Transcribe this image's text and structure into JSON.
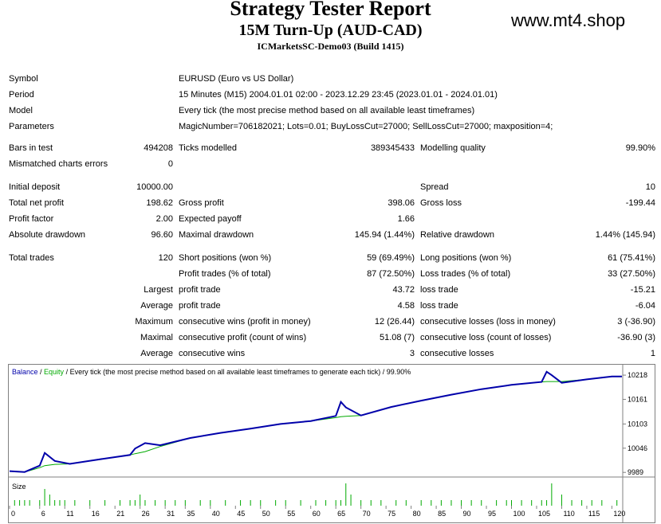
{
  "report": {
    "title": "Strategy Tester Report",
    "subtitle": "15M Turn-Up (AUD-CAD)",
    "server": "ICMarketsSC-Demo03 (Build 1415)",
    "website": "www.mt4.shop"
  },
  "settings": {
    "symbol_label": "Symbol",
    "symbol_value": "EURUSD (Euro vs US Dollar)",
    "period_label": "Period",
    "period_value": "15 Minutes (M15) 2004.01.01 02:00 - 2023.12.29 23:45 (2023.01.01 - 2024.01.01)",
    "model_label": "Model",
    "model_value": "Every tick (the most precise method based on all available least timeframes)",
    "params_label": "Parameters",
    "params_value": "MagicNumber=706182021; Lots=0.01; BuyLossCut=27000; SellLossCut=27000; maxposition=4;"
  },
  "stats": {
    "bars_label": "Bars in test",
    "bars_value": "494208",
    "ticks_label": "Ticks modelled",
    "ticks_value": "389345433",
    "quality_label": "Modelling quality",
    "quality_value": "99.90%",
    "mismatch_label": "Mismatched charts errors",
    "mismatch_value": "0",
    "deposit_label": "Initial deposit",
    "deposit_value": "10000.00",
    "spread_label": "Spread",
    "spread_value": "10",
    "netprofit_label": "Total net profit",
    "netprofit_value": "198.62",
    "grossprofit_label": "Gross profit",
    "grossprofit_value": "398.06",
    "grossloss_label": "Gross loss",
    "grossloss_value": "-199.44",
    "pf_label": "Profit factor",
    "pf_value": "2.00",
    "ep_label": "Expected payoff",
    "ep_value": "1.66",
    "absdd_label": "Absolute drawdown",
    "absdd_value": "96.60",
    "maxdd_label": "Maximal drawdown",
    "maxdd_value": "145.94 (1.44%)",
    "reldd_label": "Relative drawdown",
    "reldd_value": "1.44% (145.94)",
    "trades_label": "Total trades",
    "trades_value": "120",
    "short_label": "Short positions (won %)",
    "short_value": "59 (69.49%)",
    "long_label": "Long positions (won %)",
    "long_value": "61 (75.41%)",
    "ptrades_label": "Profit trades (% of total)",
    "ptrades_value": "87 (72.50%)",
    "ltrades_label": "Loss trades (% of total)",
    "ltrades_value": "33 (27.50%)",
    "largest_label": "Largest",
    "largest_pt_label": "profit trade",
    "largest_pt_value": "43.72",
    "largest_lt_label": "loss trade",
    "largest_lt_value": "-15.21",
    "average_label": "Average",
    "average_pt_label": "profit trade",
    "average_pt_value": "4.58",
    "average_lt_label": "loss trade",
    "average_lt_value": "-6.04",
    "maximum_label": "Maximum",
    "max_cw_label": "consecutive wins (profit in money)",
    "max_cw_value": "12 (26.44)",
    "max_cl_label": "consecutive losses (loss in money)",
    "max_cl_value": "3 (-36.90)",
    "maximal_label": "Maximal",
    "mx_cp_label": "consecutive profit (count of wins)",
    "mx_cp_value": "51.08 (7)",
    "mx_cl_label": "consecutive loss (count of losses)",
    "mx_cl_value": "-36.90 (3)",
    "average2_label": "Average",
    "avg_cw_label": "consecutive wins",
    "avg_cw_value": "3",
    "avg_cl_label": "consecutive losses",
    "avg_cl_value": "1"
  },
  "chart_data": {
    "type": "line",
    "legend_balance": "Balance",
    "legend_sep": " / ",
    "legend_equity": "Equity",
    "legend_rest": " / Every tick (the most precise method based on all available least timeframes to generate each tick) / 99.90%",
    "size_label": "Size",
    "balance_color": "#0000aa",
    "equity_color": "#00aa00",
    "y_ticks": [
      "10218",
      "10161",
      "10103",
      "10046",
      "9989"
    ],
    "y_tick_values": [
      10218,
      10161,
      10103,
      10046,
      9989
    ],
    "ylim": [
      9980,
      10235
    ],
    "xlim": [
      0,
      122
    ],
    "x_ticks": [
      "0",
      "6",
      "11",
      "16",
      "21",
      "26",
      "31",
      "35",
      "40",
      "45",
      "50",
      "55",
      "60",
      "65",
      "70",
      "75",
      "80",
      "85",
      "90",
      "95",
      "100",
      "105",
      "110",
      "115",
      "120"
    ],
    "x_tick_values": [
      0,
      6,
      11,
      16,
      21,
      26,
      31,
      35,
      40,
      45,
      50,
      55,
      60,
      65,
      70,
      75,
      80,
      85,
      90,
      95,
      100,
      105,
      110,
      115,
      120
    ],
    "balance": {
      "x": [
        0,
        3,
        6,
        7,
        9,
        12,
        18,
        24,
        25,
        27,
        30,
        36,
        42,
        48,
        54,
        60,
        65,
        66,
        67,
        70,
        76,
        82,
        88,
        94,
        100,
        106,
        107,
        108,
        110,
        115,
        120,
        122
      ],
      "y": [
        9992,
        9990,
        10005,
        10035,
        10016,
        10009,
        10020,
        10030,
        10045,
        10058,
        10053,
        10070,
        10082,
        10092,
        10103,
        10110,
        10122,
        10155,
        10142,
        10123,
        10143,
        10158,
        10172,
        10185,
        10195,
        10202,
        10226,
        10218,
        10200,
        10208,
        10215,
        10215
      ]
    },
    "equity": {
      "x": [
        0,
        3,
        6,
        7,
        9,
        12,
        18,
        24,
        25,
        27,
        30,
        36,
        42,
        48,
        54,
        60,
        65,
        66,
        67,
        70,
        76,
        82,
        88,
        94,
        100,
        106,
        107,
        108,
        110,
        115,
        120,
        122
      ],
      "y": [
        9992,
        9990,
        10000,
        10005,
        10008,
        10009,
        10020,
        10030,
        10033,
        10038,
        10050,
        10070,
        10082,
        10092,
        10103,
        10110,
        10118,
        10120,
        10121,
        10123,
        10143,
        10158,
        10172,
        10185,
        10195,
        10202,
        10203,
        10203,
        10203,
        10208,
        10215,
        10215
      ]
    },
    "sizes": {
      "x": [
        1,
        2,
        3,
        4,
        6,
        7,
        8,
        9,
        10,
        11,
        13,
        16,
        19,
        22,
        24,
        25,
        26,
        27,
        29,
        31,
        33,
        35,
        38,
        40,
        43,
        46,
        48,
        50,
        53,
        55,
        58,
        61,
        63,
        65,
        66,
        67,
        68,
        70,
        72,
        74,
        77,
        79,
        82,
        84,
        86,
        88,
        90,
        92,
        94,
        97,
        99,
        100,
        102,
        104,
        106,
        107,
        108,
        110,
        112,
        114,
        116,
        118,
        121
      ],
      "y": [
        1,
        1,
        1,
        1,
        1,
        3,
        2,
        1,
        1,
        1,
        1,
        1,
        1,
        1,
        1,
        1,
        2,
        1,
        1,
        1,
        1,
        1,
        1,
        1,
        1,
        1,
        1,
        1,
        1,
        1,
        1,
        1,
        1,
        1,
        1,
        4,
        2,
        1,
        1,
        1,
        1,
        1,
        1,
        1,
        1,
        1,
        1,
        1,
        1,
        1,
        1,
        1,
        1,
        1,
        1,
        1,
        4,
        2,
        1,
        1,
        1,
        1,
        1
      ]
    }
  }
}
